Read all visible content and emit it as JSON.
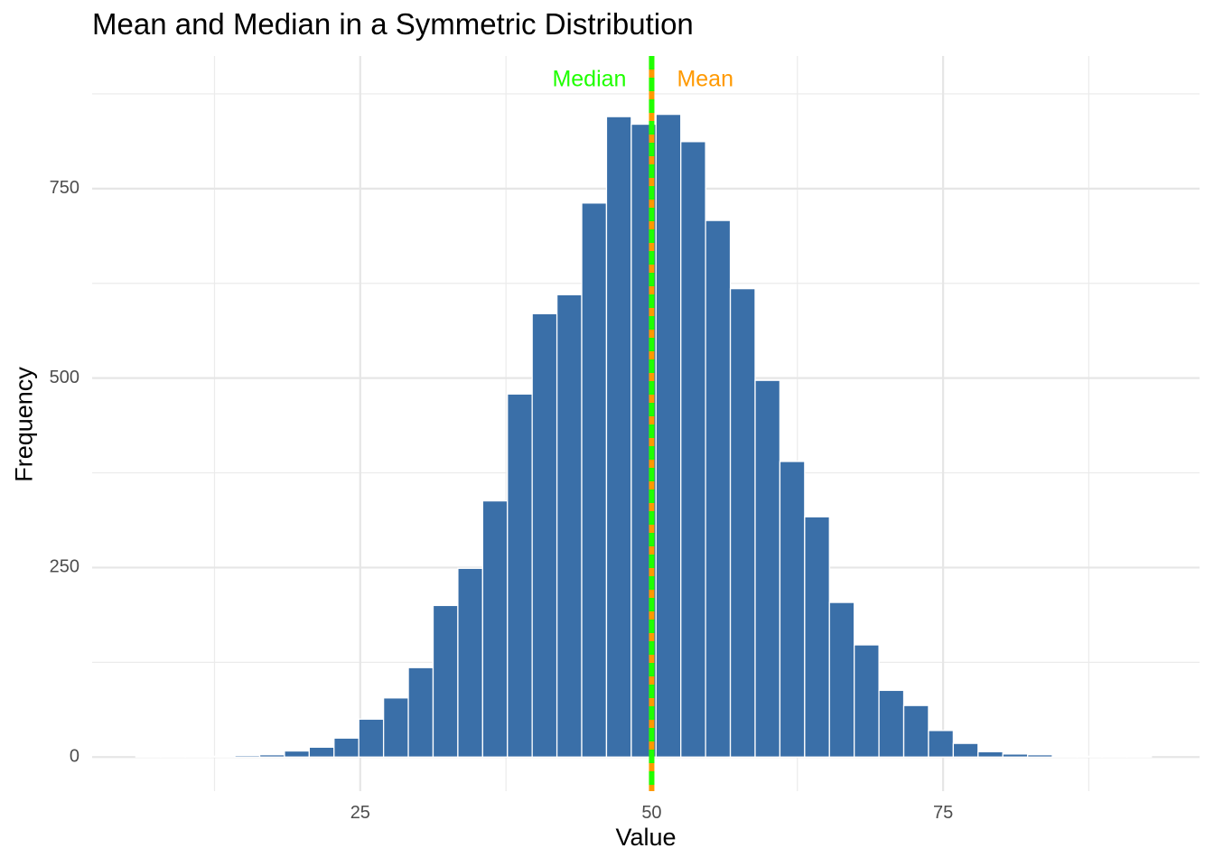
{
  "chart_data": {
    "type": "bar",
    "title": "Mean and Median in a Symmetric Distribution",
    "xlabel": "Value",
    "ylabel": "Frequency",
    "xlim": [
      2,
      97
    ],
    "ylim": [
      -45,
      925
    ],
    "x_ticks": [
      25,
      50,
      75
    ],
    "x_minor_ticks": [
      12.5,
      37.5,
      62.5,
      87.5
    ],
    "y_ticks": [
      0,
      250,
      500,
      750
    ],
    "y_minor_ticks": [
      125,
      375,
      625,
      875
    ],
    "bin_width": 2.125,
    "bin_start": 5.75,
    "values": [
      1,
      1,
      1,
      1,
      2,
      3,
      8,
      13,
      25,
      50,
      78,
      118,
      200,
      249,
      338,
      479,
      585,
      610,
      731,
      845,
      835,
      848,
      812,
      708,
      618,
      497,
      390,
      317,
      204,
      148,
      88,
      68,
      35,
      18,
      7,
      4,
      3,
      1,
      1,
      1,
      1
    ],
    "bar_color": "#3A6FA8",
    "bar_outline": "#ffffff",
    "grid": true,
    "reference_lines": [
      {
        "name": "Mean",
        "value": 50.0,
        "color": "#FF9900",
        "style": "solid",
        "label_side": "right"
      },
      {
        "name": "Median",
        "value": 50.0,
        "color": "#1FFF00",
        "style": "dashed",
        "label_side": "left"
      }
    ],
    "label_y": 893
  }
}
